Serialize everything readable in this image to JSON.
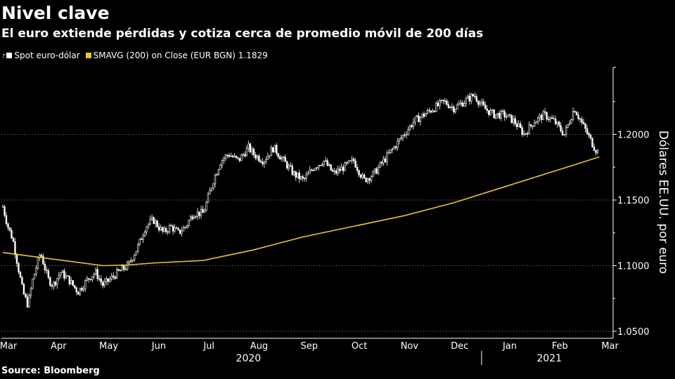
{
  "header": {
    "title": "Nivel clave",
    "subtitle": "El euro extiende pérdidas y cotiza cerca de promedio móvil de 200 días"
  },
  "legend": {
    "spot_label": "Spot euro-dólar",
    "sma_label": "SMAVG (200)  on Close (EUR BGN) 1.1829"
  },
  "source": "Source: Bloomberg",
  "colors": {
    "background": "#000000",
    "candles": "#ffffff",
    "sma": "#e9c430",
    "grid": "#888888"
  },
  "chart_data": {
    "type": "line",
    "title": "Nivel clave",
    "subtitle": "El euro extiende pérdidas y cotiza cerca de promedio móvil de 200 días",
    "ylabel": "Dólares EE.UU. por euro",
    "ylim": [
      1.05,
      1.25
    ],
    "yticks": [
      "1.2000",
      "1.1500",
      "1.1000",
      "1.0500"
    ],
    "ytick_values": [
      1.2,
      1.15,
      1.1,
      1.05
    ],
    "months": [
      "Mar",
      "Apr",
      "May",
      "Jun",
      "Jul",
      "Aug",
      "Sep",
      "Oct",
      "Nov",
      "Dec",
      "Jan",
      "Feb",
      "Mar"
    ],
    "years": [
      "2020",
      "2021"
    ],
    "series": [
      {
        "name": "Spot euro-dólar",
        "style": "candlestick",
        "x": [
          0,
          0.1,
          0.2,
          0.3,
          0.4,
          0.5,
          0.6,
          0.75,
          0.9,
          1.0,
          1.15,
          1.3,
          1.5,
          1.7,
          1.85,
          2.0,
          2.15,
          2.3,
          2.5,
          2.7,
          2.85,
          3.0,
          3.2,
          3.35,
          3.5,
          3.65,
          3.8,
          4.0,
          4.2,
          4.35,
          4.5,
          4.7,
          4.9,
          5.0,
          5.2,
          5.4,
          5.6,
          5.8,
          6.0,
          6.2,
          6.4,
          6.6,
          6.8,
          7.0,
          7.2,
          7.4,
          7.6,
          7.8,
          8.0,
          8.2,
          8.4,
          8.6,
          8.8,
          9.0,
          9.2,
          9.4,
          9.6,
          9.8,
          10.0,
          10.2,
          10.4,
          10.6,
          10.8,
          11.0,
          11.2,
          11.4,
          11.6,
          11.8,
          11.9
        ],
        "values": [
          1.145,
          1.13,
          1.12,
          1.1,
          1.08,
          1.07,
          1.09,
          1.11,
          1.09,
          1.085,
          1.095,
          1.09,
          1.08,
          1.09,
          1.095,
          1.085,
          1.09,
          1.095,
          1.1,
          1.115,
          1.13,
          1.135,
          1.125,
          1.13,
          1.125,
          1.13,
          1.14,
          1.14,
          1.165,
          1.18,
          1.185,
          1.18,
          1.19,
          1.185,
          1.18,
          1.19,
          1.18,
          1.17,
          1.165,
          1.175,
          1.18,
          1.17,
          1.175,
          1.18,
          1.165,
          1.17,
          1.18,
          1.19,
          1.2,
          1.21,
          1.215,
          1.22,
          1.225,
          1.22,
          1.225,
          1.23,
          1.22,
          1.215,
          1.215,
          1.21,
          1.2,
          1.21,
          1.215,
          1.21,
          1.2,
          1.22,
          1.205,
          1.19,
          1.185
        ]
      },
      {
        "name": "SMAVG (200) on Close (EUR BGN) 1.1829",
        "style": "line",
        "x": [
          0,
          1,
          2,
          2.5,
          3,
          4,
          5,
          6,
          7,
          8,
          9,
          10,
          11,
          11.5,
          11.9
        ],
        "values": [
          1.11,
          1.105,
          1.1,
          1.1005,
          1.102,
          1.104,
          1.112,
          1.122,
          1.13,
          1.138,
          1.148,
          1.16,
          1.172,
          1.178,
          1.1829
        ]
      }
    ]
  }
}
